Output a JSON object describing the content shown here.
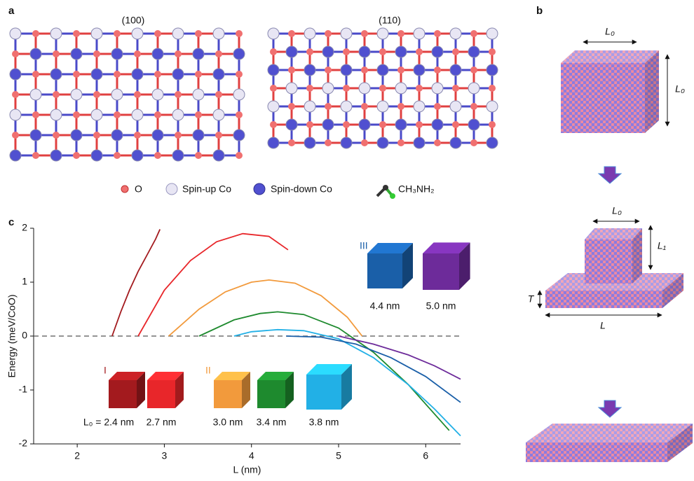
{
  "panel_labels": [
    "a",
    "b",
    "c"
  ],
  "panel_a": {
    "facets": [
      "(100)",
      "(110)"
    ],
    "legend": [
      "O",
      "Spin-up Co",
      "Spin-down Co",
      "CH₃NH₂"
    ]
  },
  "panel_b": {
    "labels": [
      "L₀",
      "L₀",
      "L₀",
      "L₁",
      "T",
      "L"
    ]
  },
  "chart_data": {
    "type": "line",
    "xlabel": "L (nm)",
    "ylabel": "Energy (meV/CoO)",
    "xlim": [
      1.5,
      6.4
    ],
    "ylim": [
      -2,
      2
    ],
    "xticks": [
      2,
      3,
      4,
      5,
      6
    ],
    "yticks": [
      -2,
      -1,
      0,
      1,
      2
    ],
    "hline": 0,
    "annotations": [
      "I",
      "II",
      "III"
    ],
    "series": [
      {
        "name": "L₀ = 2.4 nm",
        "color": "#a31a1e",
        "x": [
          2.4,
          2.5,
          2.6,
          2.7,
          2.8,
          2.9,
          2.95
        ],
        "values": [
          0,
          0.45,
          0.85,
          1.2,
          1.5,
          1.8,
          1.98
        ]
      },
      {
        "name": "2.7 nm",
        "color": "#e8262a",
        "x": [
          2.7,
          3.0,
          3.3,
          3.6,
          3.9,
          4.2,
          4.42
        ],
        "values": [
          0,
          0.85,
          1.4,
          1.75,
          1.9,
          1.85,
          1.6
        ]
      },
      {
        "name": "3.0 nm",
        "color": "#f29a3c",
        "x": [
          3.05,
          3.4,
          3.7,
          4.0,
          4.2,
          4.5,
          4.8,
          5.1,
          5.27
        ],
        "values": [
          0,
          0.5,
          0.82,
          1.0,
          1.04,
          0.98,
          0.75,
          0.35,
          0
        ]
      },
      {
        "name": "3.4 nm",
        "color": "#1e8a2e",
        "x": [
          3.4,
          3.8,
          4.1,
          4.3,
          4.6,
          5.0,
          5.4,
          5.8,
          6.27
        ],
        "values": [
          0,
          0.3,
          0.42,
          0.45,
          0.4,
          0.15,
          -0.3,
          -0.9,
          -1.75
        ]
      },
      {
        "name": "3.8 nm",
        "color": "#22b0e6",
        "x": [
          3.8,
          4.0,
          4.3,
          4.6,
          5.0,
          5.4,
          5.8,
          6.1,
          6.4
        ],
        "values": [
          0,
          0.08,
          0.12,
          0.1,
          -0.05,
          -0.4,
          -0.9,
          -1.35,
          -1.85
        ]
      },
      {
        "name": "4.4 nm",
        "color": "#1a5fa8",
        "x": [
          4.4,
          4.8,
          5.2,
          5.6,
          6.0,
          6.4
        ],
        "values": [
          0,
          -0.02,
          -0.15,
          -0.4,
          -0.75,
          -1.23
        ]
      },
      {
        "name": "5.0 nm",
        "color": "#6d2b9a",
        "x": [
          5.0,
          5.4,
          5.8,
          6.1,
          6.4
        ],
        "values": [
          0,
          -0.15,
          -0.35,
          -0.55,
          -0.8
        ]
      }
    ]
  }
}
